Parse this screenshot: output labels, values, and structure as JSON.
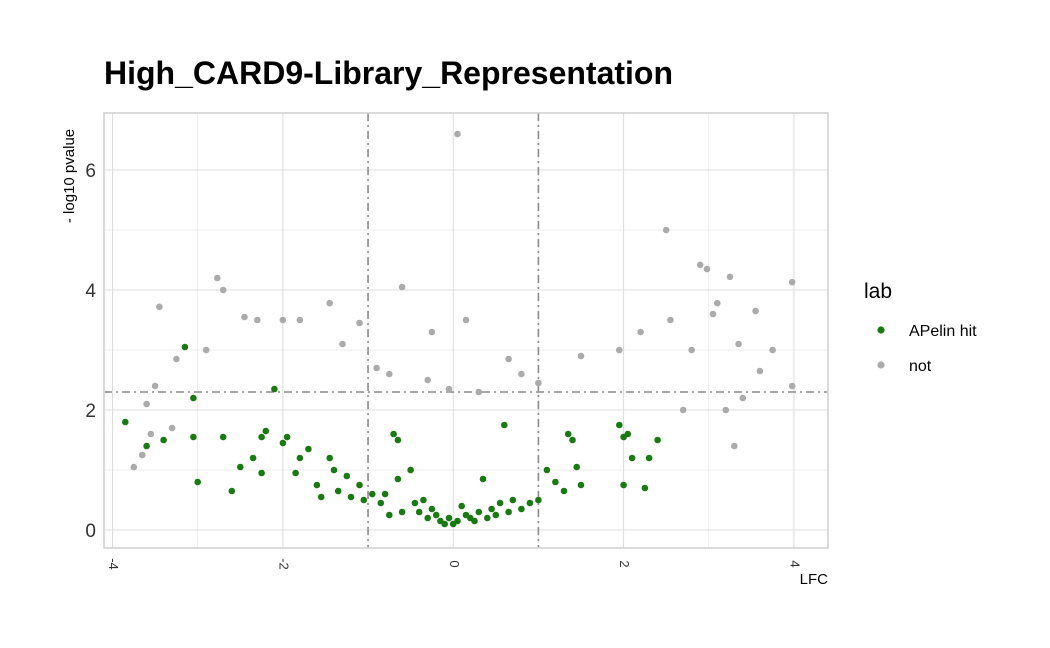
{
  "chart_data": {
    "type": "scatter",
    "title": "High_CARD9-Library_Representation",
    "xlabel": "LFC",
    "ylabel": "- log10 pvalue",
    "xlim": [
      -4.1,
      4.4
    ],
    "ylim": [
      -0.3,
      6.95
    ],
    "x_ticks": [
      -4,
      -2,
      0,
      2,
      4
    ],
    "y_ticks": [
      0,
      2,
      4,
      6
    ],
    "grid": true,
    "reference_lines": {
      "vertical": [
        -1,
        1
      ],
      "horizontal": [
        2.3
      ]
    },
    "legend": {
      "title": "lab",
      "position": "right",
      "entries": [
        {
          "label": "APelin hit",
          "color": "#1a7a12"
        },
        {
          "label": "not",
          "color": "#ababab"
        }
      ]
    },
    "colors": {
      "hit": "#1a7a12",
      "not": "#ababab",
      "grid": "#d9d9d9",
      "refline": "#8c8c8c"
    },
    "series": [
      {
        "name": "APelin hit",
        "color": "#1a7a12",
        "points": [
          [
            -3.85,
            1.8
          ],
          [
            -3.6,
            1.4
          ],
          [
            -3.4,
            1.5
          ],
          [
            -3.15,
            3.05
          ],
          [
            -3.05,
            2.2
          ],
          [
            -3.05,
            1.55
          ],
          [
            -3.0,
            0.8
          ],
          [
            -2.7,
            1.55
          ],
          [
            -2.6,
            0.65
          ],
          [
            -2.5,
            1.05
          ],
          [
            -2.35,
            1.2
          ],
          [
            -2.25,
            0.95
          ],
          [
            -2.25,
            1.55
          ],
          [
            -2.2,
            1.65
          ],
          [
            -2.1,
            2.35
          ],
          [
            -2.0,
            1.45
          ],
          [
            -1.95,
            1.55
          ],
          [
            -1.85,
            0.95
          ],
          [
            -1.8,
            1.2
          ],
          [
            -1.7,
            1.35
          ],
          [
            -1.6,
            0.75
          ],
          [
            -1.55,
            0.55
          ],
          [
            -1.45,
            1.2
          ],
          [
            -1.4,
            1.0
          ],
          [
            -1.35,
            0.65
          ],
          [
            -1.25,
            0.9
          ],
          [
            -1.2,
            0.55
          ],
          [
            -1.1,
            0.75
          ],
          [
            -1.05,
            0.5
          ],
          [
            -0.95,
            0.6
          ],
          [
            -0.85,
            0.45
          ],
          [
            -0.8,
            0.6
          ],
          [
            -0.75,
            0.25
          ],
          [
            -0.7,
            1.6
          ],
          [
            -0.65,
            1.5
          ],
          [
            -0.65,
            0.85
          ],
          [
            -0.6,
            0.3
          ],
          [
            -0.5,
            1.0
          ],
          [
            -0.45,
            0.45
          ],
          [
            -0.4,
            0.3
          ],
          [
            -0.35,
            0.5
          ],
          [
            -0.3,
            0.2
          ],
          [
            -0.25,
            0.35
          ],
          [
            -0.2,
            0.25
          ],
          [
            -0.15,
            0.15
          ],
          [
            -0.1,
            0.1
          ],
          [
            -0.05,
            0.2
          ],
          [
            0.0,
            0.1
          ],
          [
            0.05,
            0.15
          ],
          [
            0.1,
            0.4
          ],
          [
            0.15,
            0.25
          ],
          [
            0.2,
            0.2
          ],
          [
            0.25,
            0.15
          ],
          [
            0.3,
            0.3
          ],
          [
            0.35,
            0.85
          ],
          [
            0.4,
            0.2
          ],
          [
            0.45,
            0.35
          ],
          [
            0.5,
            0.25
          ],
          [
            0.55,
            0.45
          ],
          [
            0.6,
            1.75
          ],
          [
            0.65,
            0.3
          ],
          [
            0.7,
            0.5
          ],
          [
            0.8,
            0.35
          ],
          [
            0.9,
            0.45
          ],
          [
            1.0,
            0.5
          ],
          [
            1.1,
            1.0
          ],
          [
            1.2,
            0.8
          ],
          [
            1.3,
            0.65
          ],
          [
            1.35,
            1.6
          ],
          [
            1.4,
            1.5
          ],
          [
            1.45,
            1.05
          ],
          [
            1.5,
            0.75
          ],
          [
            1.95,
            1.75
          ],
          [
            2.0,
            0.75
          ],
          [
            2.0,
            1.55
          ],
          [
            2.05,
            1.6
          ],
          [
            2.1,
            1.2
          ],
          [
            2.25,
            0.7
          ],
          [
            2.3,
            1.2
          ],
          [
            2.4,
            1.5
          ]
        ]
      },
      {
        "name": "not",
        "color": "#ababab",
        "points": [
          [
            -2.77,
            4.2
          ],
          [
            -2.7,
            4.0
          ],
          [
            -3.45,
            3.72
          ],
          [
            -2.45,
            3.55
          ],
          [
            -2.3,
            3.5
          ],
          [
            -2.0,
            3.5
          ],
          [
            -1.8,
            3.5
          ],
          [
            -1.45,
            3.78
          ],
          [
            -1.1,
            3.45
          ],
          [
            -0.6,
            4.05
          ],
          [
            -0.25,
            3.3
          ],
          [
            0.05,
            6.6
          ],
          [
            0.15,
            3.5
          ],
          [
            0.65,
            2.85
          ],
          [
            -0.75,
            2.6
          ],
          [
            -0.9,
            2.7
          ],
          [
            -1.3,
            3.1
          ],
          [
            -2.9,
            3.0
          ],
          [
            -3.25,
            2.85
          ],
          [
            -3.5,
            2.4
          ],
          [
            -3.6,
            2.1
          ],
          [
            -3.55,
            1.6
          ],
          [
            -3.3,
            1.7
          ],
          [
            -3.75,
            1.05
          ],
          [
            -3.65,
            1.25
          ],
          [
            2.5,
            5.0
          ],
          [
            2.9,
            4.42
          ],
          [
            2.98,
            4.35
          ],
          [
            3.05,
            3.6
          ],
          [
            3.1,
            3.78
          ],
          [
            3.25,
            4.22
          ],
          [
            3.35,
            3.1
          ],
          [
            3.55,
            3.65
          ],
          [
            3.6,
            2.65
          ],
          [
            3.75,
            3.0
          ],
          [
            3.98,
            4.13
          ],
          [
            3.98,
            2.4
          ],
          [
            3.2,
            2.0
          ],
          [
            3.3,
            1.4
          ],
          [
            3.4,
            2.2
          ],
          [
            2.8,
            3.0
          ],
          [
            2.7,
            2.0
          ],
          [
            2.55,
            3.5
          ],
          [
            2.2,
            3.3
          ],
          [
            1.95,
            3.0
          ],
          [
            1.5,
            2.9
          ],
          [
            1.0,
            2.45
          ],
          [
            0.8,
            2.6
          ],
          [
            0.3,
            2.3
          ],
          [
            -0.3,
            2.5
          ],
          [
            -0.05,
            2.35
          ]
        ]
      }
    ]
  }
}
